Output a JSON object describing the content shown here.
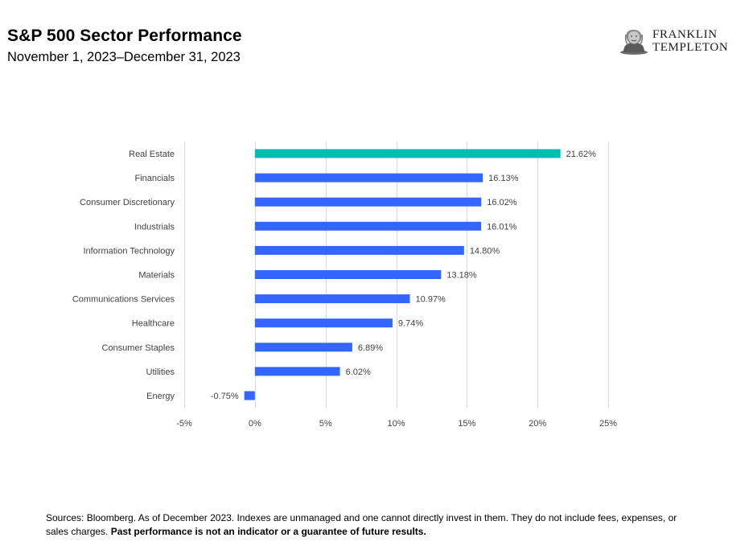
{
  "header": {
    "title": "S&P 500 Sector Performance",
    "subtitle": "November 1, 2023–December 31, 2023"
  },
  "logo": {
    "line1": "FRANKLIN",
    "line2": "TEMPLETON",
    "icon": "franklin-portrait-icon"
  },
  "colors": {
    "highlight": "#00BFB2",
    "bar": "#3366FF",
    "grid": "#D9D9D9",
    "text": "#404040"
  },
  "chart_data": {
    "type": "bar",
    "orientation": "horizontal",
    "categories": [
      "Real Estate",
      "Financials",
      "Consumer Discretionary",
      "Industrials",
      "Information Technology",
      "Materials",
      "Communications Services",
      "Healthcare",
      "Consumer Staples",
      "Utilities",
      "Energy"
    ],
    "values": [
      21.62,
      16.13,
      16.02,
      16.01,
      14.8,
      13.18,
      10.97,
      9.74,
      6.89,
      6.02,
      -0.75
    ],
    "value_labels": [
      "21.62%",
      "16.13%",
      "16.02%",
      "16.01%",
      "14.80%",
      "13.18%",
      "10.97%",
      "9.74%",
      "6.89%",
      "6.02%",
      "-0.75%"
    ],
    "highlight_index": 0,
    "xlim": [
      -5,
      25
    ],
    "xticks": [
      -5,
      0,
      5,
      10,
      15,
      20,
      25
    ],
    "xtick_labels": [
      "-5%",
      "0%",
      "5%",
      "10%",
      "15%",
      "20%",
      "25%"
    ],
    "grid": true,
    "legend": "none"
  },
  "footnote": {
    "text": "Sources: Bloomberg. As of December 2023. Indexes are unmanaged and one cannot directly invest in them. They do not include fees, expenses, or sales charges. ",
    "bold": "Past performance is not an indicator or a guarantee of future results."
  }
}
